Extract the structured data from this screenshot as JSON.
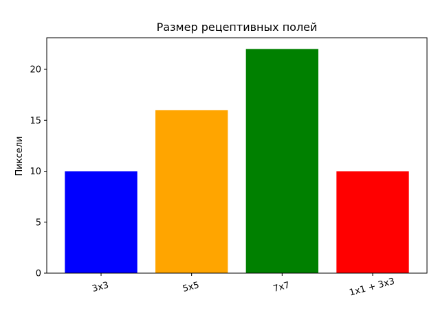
{
  "chart_data": {
    "type": "bar",
    "title": "Размер рецептивных полей",
    "xlabel": "",
    "ylabel": "Пиксели",
    "categories": [
      "3x3",
      "5x5",
      "7x7",
      "1x1 + 3x3"
    ],
    "values": [
      10,
      16,
      22,
      10
    ],
    "colors": [
      "#0000ff",
      "#ffa500",
      "#008000",
      "#ff0000"
    ],
    "ylim": [
      0,
      23.1
    ],
    "yticks": [
      0,
      5,
      10,
      15,
      20
    ],
    "grid": false,
    "xtick_rotation_deg": 15
  }
}
